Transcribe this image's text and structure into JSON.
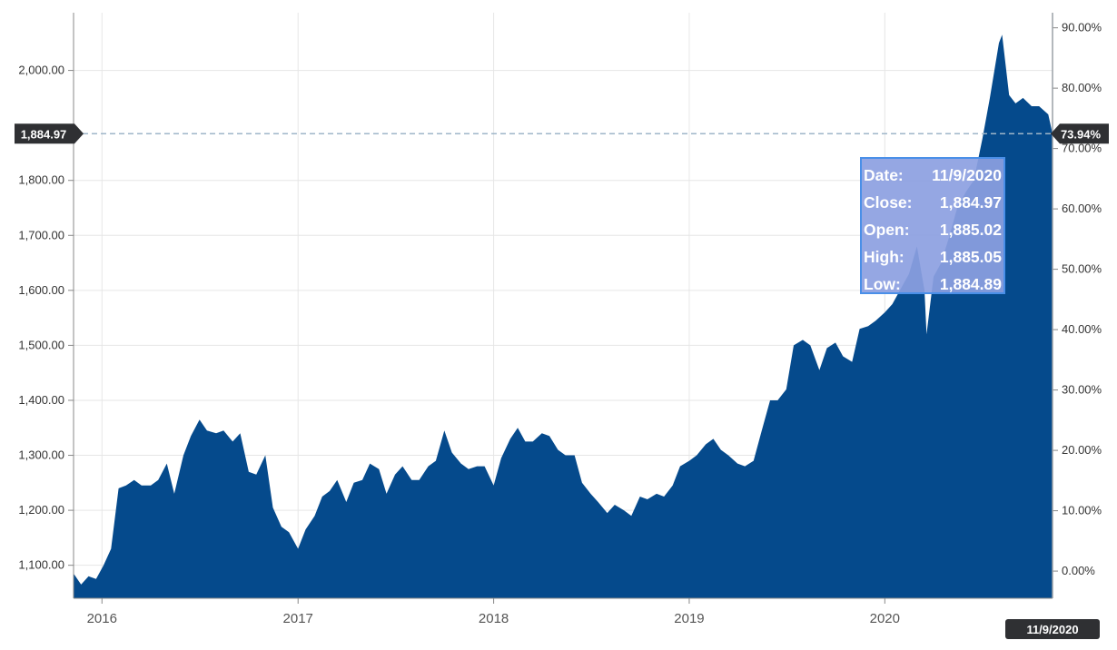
{
  "chart_data": {
    "type": "area",
    "title": "",
    "xlabel": "",
    "ylabel": "",
    "x_ticks": [
      "2016",
      "2017",
      "2018",
      "2019",
      "2020"
    ],
    "y_left_ticks": [
      "1,100.00",
      "1,200.00",
      "1,300.00",
      "1,400.00",
      "1,500.00",
      "1,600.00",
      "1,700.00",
      "1,800.00",
      "2,000.00"
    ],
    "y_left_range": [
      1040,
      2105
    ],
    "y_right_ticks": [
      "0.00%",
      "10.00%",
      "20.00%",
      "30.00%",
      "40.00%",
      "50.00%",
      "60.00%",
      "70.00%",
      "80.00%",
      "90.00%"
    ],
    "y_right_range": [
      -4.5,
      92.5
    ],
    "x_range": [
      "2015-11-09",
      "2020-11-09"
    ],
    "grid": true,
    "fill_color": "#054a8c",
    "series": [
      {
        "x": [
          "2015-11-09",
          "2015-11-23",
          "2015-12-07",
          "2015-12-21",
          "2016-01-04",
          "2016-01-18",
          "2016-02-01",
          "2016-02-15",
          "2016-03-01",
          "2016-03-15",
          "2016-04-01",
          "2016-04-15",
          "2016-05-01",
          "2016-05-15",
          "2016-06-01",
          "2016-06-15",
          "2016-07-01",
          "2016-07-15",
          "2016-08-01",
          "2016-08-15",
          "2016-09-01",
          "2016-09-15",
          "2016-10-01",
          "2016-10-15",
          "2016-11-01",
          "2016-11-15",
          "2016-12-01",
          "2016-12-15",
          "2017-01-01",
          "2017-01-15",
          "2017-02-01",
          "2017-02-15",
          "2017-03-01",
          "2017-03-15",
          "2017-04-01",
          "2017-04-15",
          "2017-05-01",
          "2017-05-15",
          "2017-06-01",
          "2017-06-15",
          "2017-07-01",
          "2017-07-15",
          "2017-08-01",
          "2017-08-15",
          "2017-09-01",
          "2017-09-15",
          "2017-10-01",
          "2017-10-15",
          "2017-11-01",
          "2017-11-15",
          "2017-12-01",
          "2017-12-15",
          "2018-01-01",
          "2018-01-15",
          "2018-02-01",
          "2018-02-15",
          "2018-03-01",
          "2018-03-15",
          "2018-04-01",
          "2018-04-15",
          "2018-05-01",
          "2018-05-15",
          "2018-06-01",
          "2018-06-15",
          "2018-07-01",
          "2018-07-15",
          "2018-08-01",
          "2018-08-15",
          "2018-09-01",
          "2018-09-15",
          "2018-10-01",
          "2018-10-15",
          "2018-11-01",
          "2018-11-15",
          "2018-12-01",
          "2018-12-15",
          "2019-01-01",
          "2019-01-15",
          "2019-02-01",
          "2019-02-15",
          "2019-03-01",
          "2019-03-15",
          "2019-04-01",
          "2019-04-15",
          "2019-05-01",
          "2019-05-15",
          "2019-06-01",
          "2019-06-15",
          "2019-07-01",
          "2019-07-15",
          "2019-08-01",
          "2019-08-15",
          "2019-09-01",
          "2019-09-15",
          "2019-10-01",
          "2019-10-15",
          "2019-11-01",
          "2019-11-15",
          "2019-12-01",
          "2019-12-15",
          "2020-01-01",
          "2020-01-15",
          "2020-02-01",
          "2020-02-15",
          "2020-03-01",
          "2020-03-15",
          "2020-03-19",
          "2020-04-01",
          "2020-04-15",
          "2020-05-01",
          "2020-05-15",
          "2020-06-01",
          "2020-06-15",
          "2020-07-01",
          "2020-07-15",
          "2020-08-01",
          "2020-08-07",
          "2020-08-20",
          "2020-09-01",
          "2020-09-15",
          "2020-10-01",
          "2020-10-15",
          "2020-11-01",
          "2020-11-09"
        ],
        "y": [
          1085,
          1065,
          1080,
          1075,
          1100,
          1130,
          1240,
          1245,
          1255,
          1245,
          1245,
          1255,
          1285,
          1230,
          1300,
          1335,
          1365,
          1345,
          1340,
          1345,
          1325,
          1340,
          1270,
          1265,
          1300,
          1205,
          1170,
          1160,
          1130,
          1165,
          1190,
          1225,
          1235,
          1255,
          1215,
          1250,
          1255,
          1285,
          1275,
          1230,
          1265,
          1280,
          1255,
          1255,
          1280,
          1290,
          1345,
          1305,
          1285,
          1275,
          1280,
          1280,
          1245,
          1295,
          1330,
          1350,
          1325,
          1325,
          1340,
          1335,
          1310,
          1300,
          1300,
          1250,
          1230,
          1215,
          1195,
          1210,
          1200,
          1190,
          1225,
          1220,
          1230,
          1225,
          1245,
          1280,
          1290,
          1300,
          1320,
          1330,
          1310,
          1300,
          1285,
          1280,
          1290,
          1340,
          1400,
          1400,
          1420,
          1500,
          1510,
          1500,
          1455,
          1495,
          1505,
          1480,
          1470,
          1530,
          1535,
          1545,
          1560,
          1575,
          1605,
          1630,
          1680,
          1600,
          1520,
          1625,
          1650,
          1700,
          1750,
          1780,
          1800,
          1875,
          1950,
          2050,
          2065,
          1955,
          1940,
          1950,
          1935,
          1935,
          1920,
          1884.97
        ]
      }
    ],
    "current": {
      "value_label": "1,884.97",
      "pct_label": "73.94%",
      "date_label": "11/9/2020"
    },
    "tooltip": [
      {
        "label": "Date:",
        "value": "11/9/2020"
      },
      {
        "label": "Close:",
        "value": "1,884.97"
      },
      {
        "label": "Open:",
        "value": "1,885.02"
      },
      {
        "label": "High:",
        "value": "1,885.05"
      },
      {
        "label": "Low:",
        "value": "1,884.89"
      }
    ]
  }
}
